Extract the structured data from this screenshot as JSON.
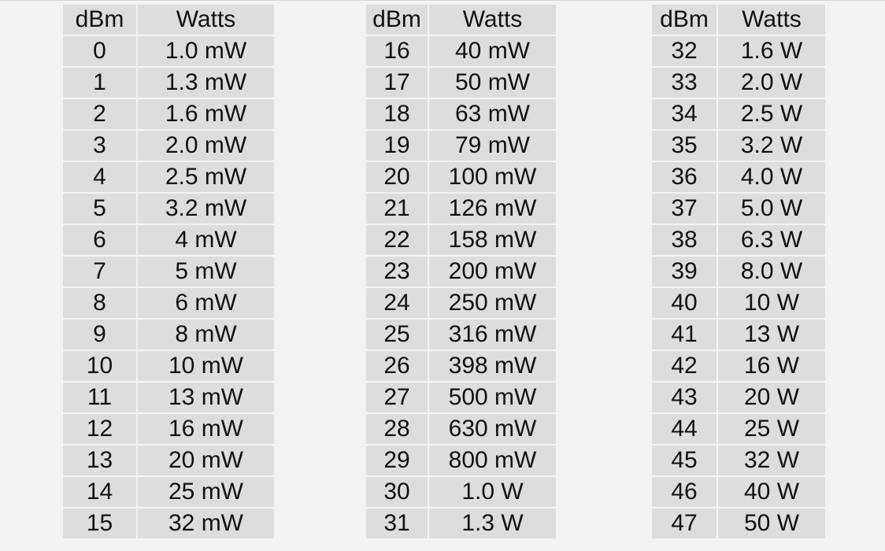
{
  "headers": {
    "dbm": "dBm",
    "watts": "Watts"
  },
  "tables": [
    {
      "rows": [
        {
          "dbm": "0",
          "watts": "1.0 mW"
        },
        {
          "dbm": "1",
          "watts": "1.3 mW"
        },
        {
          "dbm": "2",
          "watts": "1.6 mW"
        },
        {
          "dbm": "3",
          "watts": "2.0 mW"
        },
        {
          "dbm": "4",
          "watts": "2.5 mW"
        },
        {
          "dbm": "5",
          "watts": "3.2 mW"
        },
        {
          "dbm": "6",
          "watts": "4 mW"
        },
        {
          "dbm": "7",
          "watts": "5 mW"
        },
        {
          "dbm": "8",
          "watts": "6 mW"
        },
        {
          "dbm": "9",
          "watts": "8 mW"
        },
        {
          "dbm": "10",
          "watts": "10 mW"
        },
        {
          "dbm": "11",
          "watts": "13 mW"
        },
        {
          "dbm": "12",
          "watts": "16 mW"
        },
        {
          "dbm": "13",
          "watts": "20 mW"
        },
        {
          "dbm": "14",
          "watts": "25 mW"
        },
        {
          "dbm": "15",
          "watts": "32 mW"
        }
      ]
    },
    {
      "rows": [
        {
          "dbm": "16",
          "watts": "40 mW"
        },
        {
          "dbm": "17",
          "watts": "50 mW"
        },
        {
          "dbm": "18",
          "watts": "63 mW"
        },
        {
          "dbm": "19",
          "watts": "79 mW"
        },
        {
          "dbm": "20",
          "watts": "100 mW"
        },
        {
          "dbm": "21",
          "watts": "126 mW"
        },
        {
          "dbm": "22",
          "watts": "158 mW"
        },
        {
          "dbm": "23",
          "watts": "200 mW"
        },
        {
          "dbm": "24",
          "watts": "250 mW"
        },
        {
          "dbm": "25",
          "watts": "316 mW"
        },
        {
          "dbm": "26",
          "watts": "398 mW"
        },
        {
          "dbm": "27",
          "watts": "500 mW"
        },
        {
          "dbm": "28",
          "watts": "630 mW"
        },
        {
          "dbm": "29",
          "watts": "800 mW"
        },
        {
          "dbm": "30",
          "watts": "1.0 W"
        },
        {
          "dbm": "31",
          "watts": "1.3 W"
        }
      ]
    },
    {
      "rows": [
        {
          "dbm": "32",
          "watts": "1.6 W"
        },
        {
          "dbm": "33",
          "watts": "2.0 W"
        },
        {
          "dbm": "34",
          "watts": "2.5 W"
        },
        {
          "dbm": "35",
          "watts": "3.2 W"
        },
        {
          "dbm": "36",
          "watts": "4.0 W"
        },
        {
          "dbm": "37",
          "watts": "5.0 W"
        },
        {
          "dbm": "38",
          "watts": "6.3 W"
        },
        {
          "dbm": "39",
          "watts": "8.0 W"
        },
        {
          "dbm": "40",
          "watts": "10 W"
        },
        {
          "dbm": "41",
          "watts": "13 W"
        },
        {
          "dbm": "42",
          "watts": "16 W"
        },
        {
          "dbm": "43",
          "watts": "20 W"
        },
        {
          "dbm": "44",
          "watts": "25 W"
        },
        {
          "dbm": "45",
          "watts": "32 W"
        },
        {
          "dbm": "46",
          "watts": "40 W"
        },
        {
          "dbm": "47",
          "watts": "50 W"
        }
      ]
    }
  ],
  "colors": {
    "page_background": "#f3f3f3",
    "cell_background": "#dddddd",
    "text": "#111111"
  }
}
